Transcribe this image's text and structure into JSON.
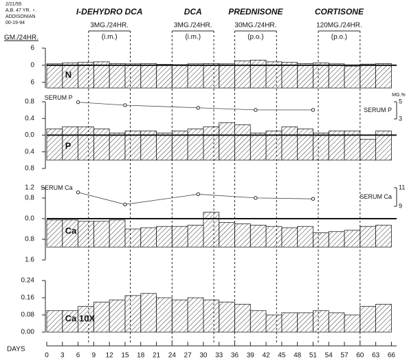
{
  "header": {
    "date": "2/21/55",
    "patient": "A.B. 47 YR. ♀.",
    "diagnosis": "ADDISONIAN",
    "number": "00-19-94"
  },
  "chart_data": {
    "type": "balance",
    "ylabel": "GM./24HR.",
    "xlabel": "DAYS",
    "xlim": [
      0,
      67
    ],
    "xticks": [
      0,
      3,
      6,
      9,
      12,
      15,
      18,
      21,
      24,
      27,
      30,
      33,
      36,
      39,
      42,
      45,
      48,
      51,
      54,
      57,
      60,
      63,
      66
    ],
    "bins": [
      0,
      3,
      6,
      9,
      12,
      15,
      18,
      21,
      24,
      27,
      30,
      33,
      36,
      39,
      42,
      45,
      48,
      51,
      54,
      57,
      60,
      63,
      66
    ],
    "treatments": [
      {
        "name": "I-DEHYDRO DCA",
        "dose": "3MG./24HR.",
        "route": "(i.m.)",
        "start": 8,
        "end": 16
      },
      {
        "name": "DCA",
        "dose": "3MG./24HR.",
        "route": "(i.m.)",
        "start": 24,
        "end": 32
      },
      {
        "name": "PREDNISONE",
        "dose": "30MG./24HR.",
        "route": "(p.o.)",
        "start": 36,
        "end": 44
      },
      {
        "name": "CORTISONE",
        "dose": "120MG./24HR.",
        "route": "(p.o.)",
        "start": 52,
        "end": 60
      }
    ],
    "panels": [
      {
        "type": "balance",
        "label": "N",
        "ylim": [
          6,
          -8
        ],
        "yticks": [
          6,
          0,
          {
            "value": -6,
            "label": "6"
          }
        ],
        "intake": -8,
        "balance": [
          0.5,
          0.8,
          1.0,
          1.2,
          0.6,
          0.5,
          0.6,
          0.3,
          0.2,
          0.5,
          0.6,
          0.5,
          1.5,
          1.8,
          1.2,
          1.0,
          0.6,
          0.8,
          0.5,
          -0.3,
          0.4,
          0.6
        ]
      },
      {
        "type": "balance",
        "label": "P",
        "ylim": [
          0.8,
          -0.8
        ],
        "yticks": [
          0.8,
          0.4,
          {
            "value": 0,
            "label": "0.0"
          },
          {
            "value": -0.4,
            "label": "0.4"
          },
          {
            "value": -0.8,
            "label": "0.8"
          }
        ],
        "intake": -0.6,
        "balance": [
          0.15,
          0.2,
          0.2,
          0.15,
          0.05,
          0.1,
          0.1,
          0.05,
          0.1,
          0.15,
          0.2,
          0.3,
          0.25,
          0.05,
          0.1,
          0.2,
          0.15,
          0.05,
          0.1,
          0.1,
          -0.1,
          0.1
        ],
        "serum": {
          "name": "SERUM P",
          "unit": "MG.%",
          "y2lim": [
            3,
            5
          ],
          "y2ticks": [
            5,
            3
          ],
          "x": [
            6,
            15,
            29,
            40,
            51
          ],
          "values": [
            4.95,
            4.6,
            4.3,
            4.05,
            4.05
          ]
        }
      },
      {
        "type": "balance",
        "label": "Ca",
        "ylim": [
          1.2,
          -1.6
        ],
        "yticks": [
          1.2,
          0.8,
          {
            "value": 0,
            "label": "0.0"
          },
          {
            "value": -0.8,
            "label": "0.8"
          },
          {
            "value": -1.6,
            "label": "1.6"
          }
        ],
        "intake": -1.1,
        "balance": [
          -0.05,
          -0.05,
          -0.1,
          -0.1,
          -0.05,
          -0.4,
          -0.35,
          -0.3,
          -0.3,
          -0.25,
          0.25,
          -0.15,
          -0.2,
          -0.25,
          -0.3,
          -0.35,
          -0.3,
          -0.55,
          -0.5,
          -0.45,
          -0.3,
          -0.25
        ],
        "serum": {
          "name": "SERUM Ca",
          "y2lim": [
            9,
            11
          ],
          "y2ticks": [
            11,
            9
          ],
          "x": [
            6,
            15,
            29,
            40,
            51
          ],
          "values": [
            10.5,
            9.2,
            10.3,
            9.9,
            9.8
          ]
        }
      },
      {
        "type": "bar",
        "label": "Ca 10X",
        "ylim": [
          0.24,
          0
        ],
        "yticks": [
          0.24,
          0.16,
          0.08,
          {
            "value": 0,
            "label": "0.00"
          }
        ],
        "values": [
          0.1,
          0.1,
          0.12,
          0.14,
          0.15,
          0.17,
          0.18,
          0.16,
          0.15,
          0.16,
          0.15,
          0.14,
          0.13,
          0.1,
          0.08,
          0.09,
          0.09,
          0.1,
          0.09,
          0.08,
          0.12,
          0.13
        ]
      }
    ]
  }
}
